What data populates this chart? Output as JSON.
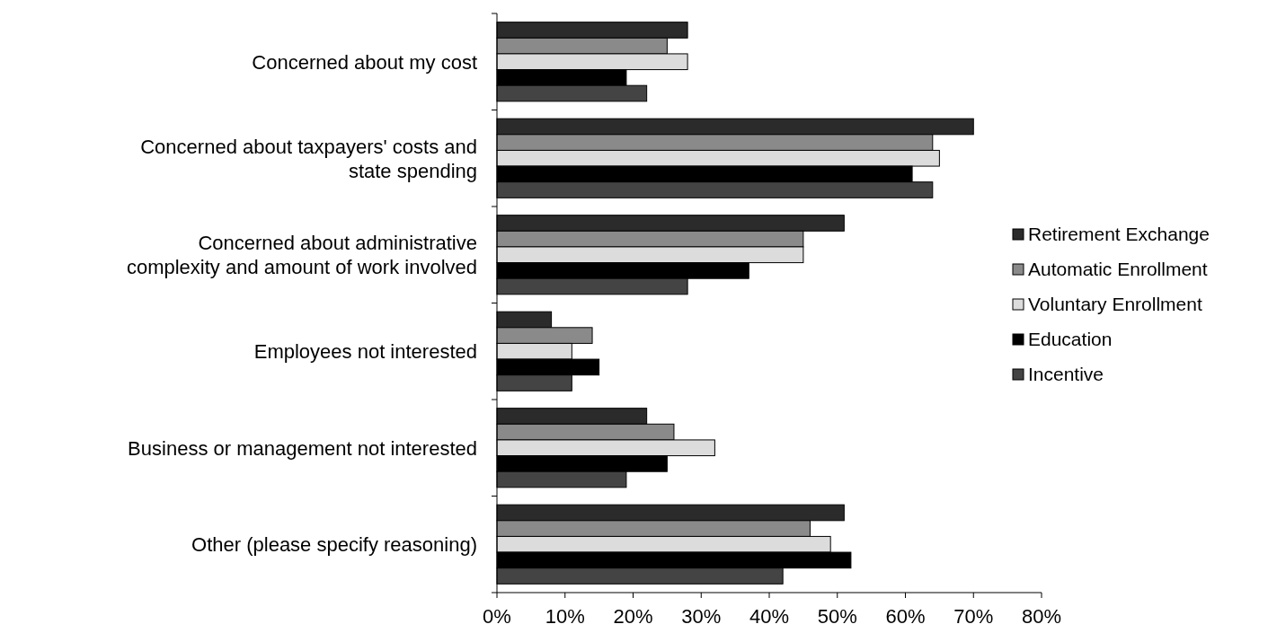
{
  "chart_data": {
    "type": "bar",
    "orientation": "horizontal",
    "categories": [
      "Concerned about my cost",
      "Concerned about taxpayers' costs and state spending",
      "Concerned about administrative complexity and amount of work involved",
      "Employees not interested",
      "Business or management not interested",
      "Other (please specify reasoning)"
    ],
    "series": [
      {
        "name": "Retirement Exchange",
        "color": "#2b2b2b",
        "values": [
          28,
          70,
          51,
          8,
          22,
          51
        ]
      },
      {
        "name": "Automatic Enrollment",
        "color": "#8a8a8a",
        "values": [
          25,
          64,
          45,
          14,
          26,
          46
        ]
      },
      {
        "name": "Voluntary Enrollment",
        "color": "#dcdcdc",
        "values": [
          28,
          65,
          45,
          11,
          32,
          49
        ]
      },
      {
        "name": "Education",
        "color": "#000000",
        "values": [
          19,
          61,
          37,
          15,
          25,
          52
        ]
      },
      {
        "name": "Incentive",
        "color": "#444444",
        "values": [
          22,
          64,
          28,
          11,
          19,
          42
        ]
      }
    ],
    "xlim": [
      0,
      80
    ],
    "xticks": [
      {
        "value": 0,
        "label": "0%"
      },
      {
        "value": 10,
        "label": "10%"
      },
      {
        "value": 20,
        "label": "20%"
      },
      {
        "value": 30,
        "label": "30%"
      },
      {
        "value": 40,
        "label": "40%"
      },
      {
        "value": 50,
        "label": "50%"
      },
      {
        "value": 60,
        "label": "60%"
      },
      {
        "value": 70,
        "label": "70%"
      },
      {
        "value": 80,
        "label": "80%"
      }
    ],
    "legend": "right",
    "grid": false
  }
}
